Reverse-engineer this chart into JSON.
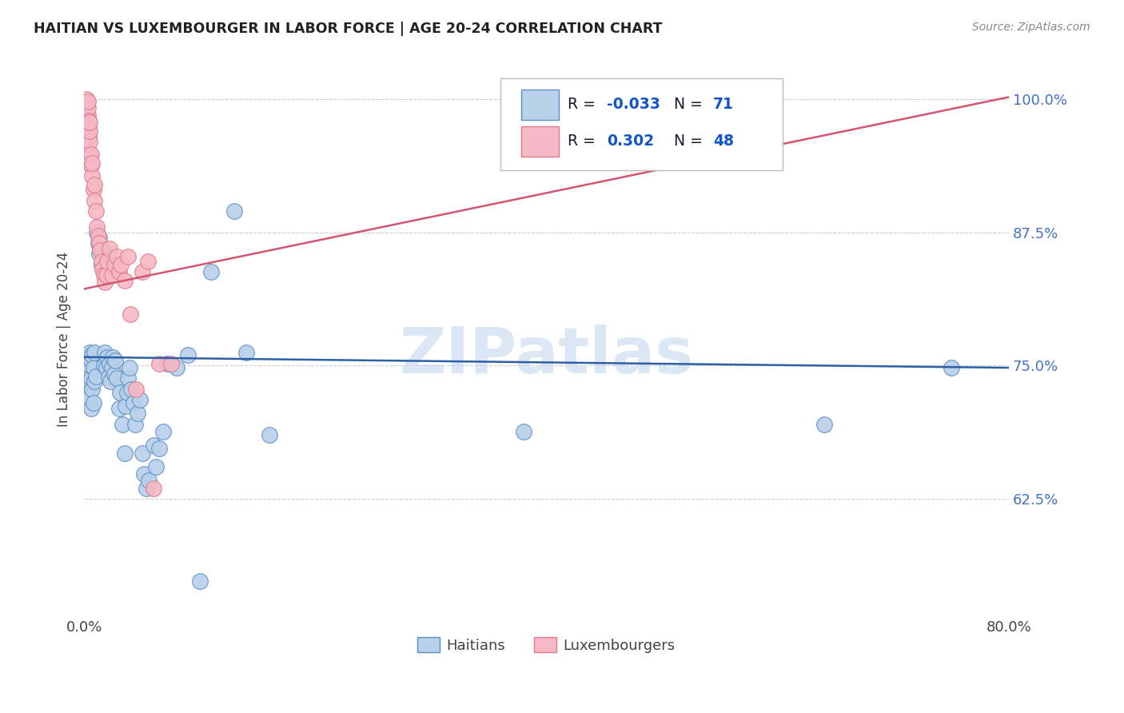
{
  "title": "HAITIAN VS LUXEMBOURGER IN LABOR FORCE | AGE 20-24 CORRELATION CHART",
  "source": "Source: ZipAtlas.com",
  "ylabel": "In Labor Force | Age 20-24",
  "xlim": [
    0.0,
    0.8
  ],
  "ylim": [
    0.515,
    1.035
  ],
  "yticks": [
    0.625,
    0.75,
    0.875,
    1.0
  ],
  "ytick_labels": [
    "62.5%",
    "75.0%",
    "87.5%",
    "100.0%"
  ],
  "xticks": [
    0.0,
    0.8
  ],
  "xtick_labels": [
    "0.0%",
    "80.0%"
  ],
  "blue_color": "#b8d0ea",
  "blue_edge_color": "#5b8ec4",
  "blue_line_color": "#2d5fa6",
  "pink_color": "#f5b8c4",
  "pink_edge_color": "#e07a8c",
  "pink_line_color": "#d45570",
  "legend_text_dark": "#1a1a2e",
  "legend_text_blue": "#1155cc",
  "watermark_color": "#c5d8ef",
  "blue_line_x": [
    0.0,
    0.8
  ],
  "blue_line_y": [
    0.758,
    0.748
  ],
  "pink_line_x": [
    0.0,
    0.8
  ],
  "pink_line_y": [
    0.822,
    1.002
  ],
  "blue_x": [
    0.002,
    0.003,
    0.003,
    0.004,
    0.004,
    0.004,
    0.005,
    0.005,
    0.005,
    0.005,
    0.006,
    0.006,
    0.006,
    0.007,
    0.007,
    0.008,
    0.008,
    0.009,
    0.009,
    0.01,
    0.011,
    0.012,
    0.013,
    0.013,
    0.014,
    0.015,
    0.016,
    0.017,
    0.018,
    0.019,
    0.02,
    0.021,
    0.022,
    0.023,
    0.024,
    0.025,
    0.026,
    0.027,
    0.028,
    0.03,
    0.031,
    0.033,
    0.035,
    0.036,
    0.037,
    0.038,
    0.039,
    0.041,
    0.043,
    0.044,
    0.046,
    0.048,
    0.05,
    0.052,
    0.054,
    0.056,
    0.06,
    0.062,
    0.065,
    0.068,
    0.072,
    0.08,
    0.09,
    0.1,
    0.11,
    0.13,
    0.14,
    0.16,
    0.38,
    0.64,
    0.75
  ],
  "blue_y": [
    0.755,
    0.74,
    0.76,
    0.73,
    0.745,
    0.758,
    0.72,
    0.735,
    0.75,
    0.762,
    0.71,
    0.738,
    0.755,
    0.728,
    0.76,
    0.715,
    0.748,
    0.735,
    0.762,
    0.74,
    0.875,
    0.865,
    0.855,
    0.87,
    0.86,
    0.845,
    0.858,
    0.75,
    0.762,
    0.748,
    0.758,
    0.74,
    0.752,
    0.735,
    0.748,
    0.758,
    0.742,
    0.755,
    0.738,
    0.71,
    0.725,
    0.695,
    0.668,
    0.712,
    0.725,
    0.738,
    0.748,
    0.728,
    0.715,
    0.695,
    0.705,
    0.718,
    0.668,
    0.648,
    0.635,
    0.642,
    0.675,
    0.655,
    0.672,
    0.688,
    0.752,
    0.748,
    0.76,
    0.548,
    0.838,
    0.895,
    0.762,
    0.685,
    0.688,
    0.695,
    0.748
  ],
  "pink_x": [
    0.002,
    0.002,
    0.002,
    0.003,
    0.003,
    0.003,
    0.003,
    0.004,
    0.004,
    0.004,
    0.005,
    0.005,
    0.005,
    0.005,
    0.006,
    0.006,
    0.007,
    0.007,
    0.008,
    0.009,
    0.009,
    0.01,
    0.011,
    0.012,
    0.013,
    0.014,
    0.015,
    0.016,
    0.017,
    0.018,
    0.019,
    0.02,
    0.022,
    0.024,
    0.026,
    0.028,
    0.03,
    0.032,
    0.035,
    0.038,
    0.04,
    0.045,
    0.05,
    0.055,
    0.06,
    0.065,
    0.075,
    0.38
  ],
  "pink_y": [
    0.985,
    0.995,
    1.0,
    0.975,
    0.985,
    0.992,
    0.998,
    0.965,
    0.972,
    0.98,
    0.95,
    0.96,
    0.97,
    0.978,
    0.938,
    0.948,
    0.928,
    0.94,
    0.915,
    0.905,
    0.92,
    0.895,
    0.88,
    0.872,
    0.865,
    0.858,
    0.848,
    0.84,
    0.835,
    0.828,
    0.835,
    0.848,
    0.86,
    0.835,
    0.845,
    0.852,
    0.838,
    0.845,
    0.83,
    0.852,
    0.798,
    0.728,
    0.838,
    0.848,
    0.635,
    0.752,
    0.752,
    1.0
  ]
}
